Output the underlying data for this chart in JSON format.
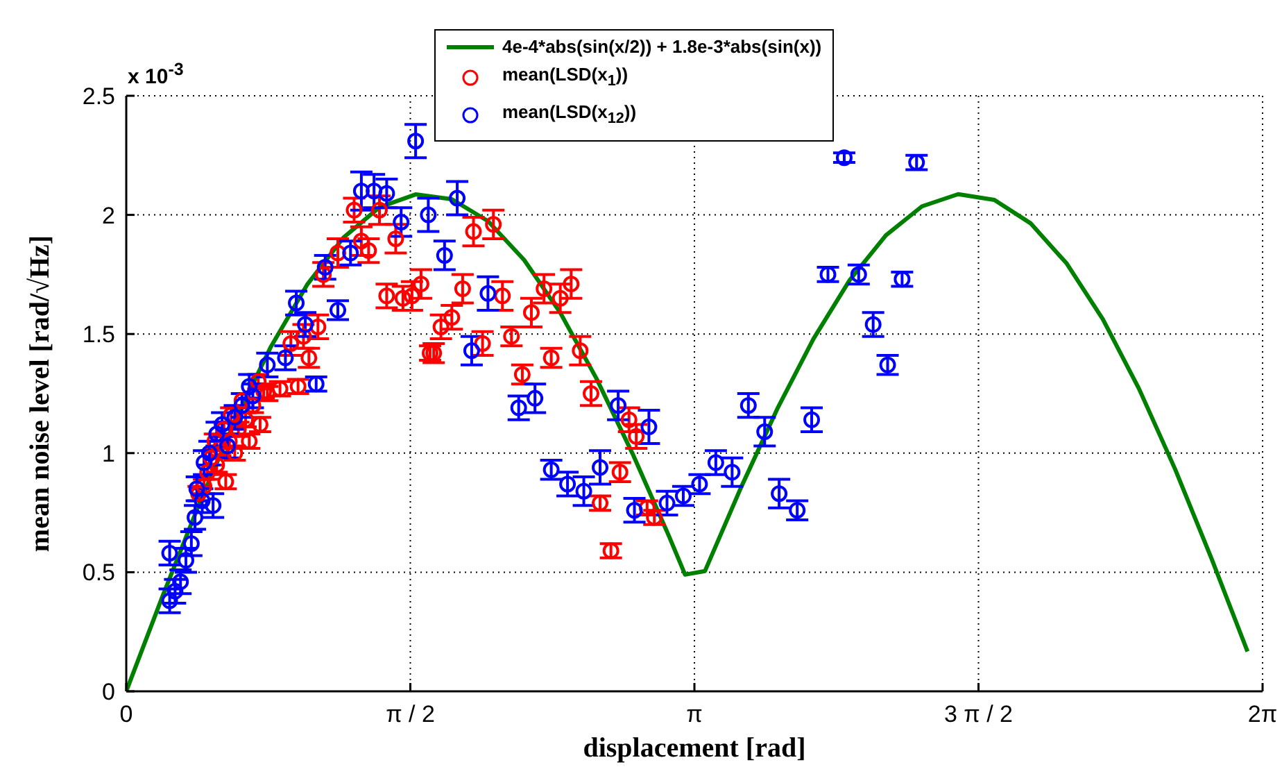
{
  "chart_data": {
    "type": "scatter",
    "xlabel": "displacement [rad]",
    "ylabel": "mean noise level [rad/√Hz]",
    "annotations": [
      "x 10$^{-3}$"
    ],
    "xlim": [
      0,
      6.2832
    ],
    "xticks": [
      0,
      {
        "value": 1.5708,
        "label": "π / 2"
      },
      {
        "value": 3.1416,
        "label": "π"
      },
      {
        "value": 4.7124,
        "label": "3 π / 2"
      },
      {
        "value": 6.2832,
        "label": "2π"
      }
    ],
    "ylim": [
      0,
      2.5
    ],
    "yticks": [
      0,
      0.5,
      1,
      1.5,
      2,
      2.5
    ],
    "grid": true,
    "legend": "top",
    "marker": "circle",
    "series": [
      {
        "name": "4e-4*abs(sin(x/2)) + 1.8e-3*abs(sin(x))",
        "type": "line",
        "line_style": "solid",
        "marker": "none",
        "color": "#008000",
        "x": [
          0,
          0.2,
          0.4,
          0.6,
          0.8,
          1.0,
          1.2,
          1.4,
          1.6,
          1.8,
          2.0,
          2.2,
          2.4,
          2.6,
          2.8,
          3.0,
          3.09,
          3.2,
          3.4,
          3.6,
          3.8,
          4.0,
          4.2,
          4.4,
          4.6,
          4.8,
          5.0,
          5.2,
          5.4,
          5.6,
          5.8,
          6.0,
          6.2
        ],
        "values": [
          0,
          0.398,
          0.78,
          1.134,
          1.447,
          1.707,
          1.904,
          2.032,
          2.086,
          2.066,
          1.974,
          1.811,
          1.589,
          1.313,
          0.997,
          0.653,
          0.49,
          0.505,
          0.857,
          1.186,
          1.48,
          1.726,
          1.914,
          2.036,
          2.087,
          2.063,
          1.965,
          1.796,
          1.562,
          1.27,
          0.932,
          0.559,
          0.167
        ]
      },
      {
        "name": "mean(LSD(x$_{1}$))",
        "color": "#ff0000",
        "x": [
          0.4,
          0.43,
          0.45,
          0.47,
          0.49,
          0.5,
          0.52,
          0.54,
          0.55,
          0.57,
          0.58,
          0.6,
          0.62,
          0.64,
          0.66,
          0.68,
          0.7,
          0.73,
          0.74,
          0.78,
          0.76,
          0.85,
          0.95,
          0.91,
          0.98,
          1.01,
          1.06,
          1.09,
          1.17,
          1.26,
          1.3,
          1.34,
          1.4,
          1.44,
          1.49,
          1.53,
          1.58,
          1.63,
          1.68,
          1.7,
          1.74,
          1.8,
          1.86,
          1.92,
          1.97,
          2.03,
          2.08,
          2.13,
          2.19,
          2.24,
          2.31,
          2.35,
          2.4,
          2.46,
          2.51,
          2.57,
          2.62,
          2.68,
          2.73,
          2.78,
          2.82,
          2.88,
          2.92
        ],
        "values": [
          0.83,
          0.86,
          0.92,
          0.98,
          1.05,
          0.95,
          1.02,
          1.1,
          0.88,
          1.05,
          1.16,
          1.0,
          1.1,
          1.22,
          1.14,
          1.05,
          1.2,
          1.3,
          1.12,
          1.25,
          1.26,
          1.27,
          1.28,
          1.46,
          1.49,
          1.4,
          1.53,
          1.75,
          1.84,
          2.02,
          1.89,
          1.85,
          2.02,
          1.66,
          1.9,
          1.65,
          1.66,
          1.71,
          1.42,
          1.42,
          1.53,
          1.57,
          1.69,
          1.93,
          1.46,
          1.96,
          1.66,
          1.49,
          1.33,
          1.59,
          1.69,
          1.4,
          1.65,
          1.71,
          1.43,
          1.25,
          0.79,
          0.59,
          0.92,
          1.14,
          1.07,
          0.77,
          0.73
        ],
        "errors": [
          0.03,
          0.03,
          0.03,
          0.03,
          0.03,
          0.03,
          0.03,
          0.03,
          0.03,
          0.03,
          0.03,
          0.03,
          0.03,
          0.03,
          0.03,
          0.03,
          0.03,
          0.03,
          0.03,
          0.03,
          0.03,
          0.03,
          0.03,
          0.05,
          0.05,
          0.04,
          0.05,
          0.05,
          0.06,
          0.05,
          0.06,
          0.05,
          0.06,
          0.05,
          0.06,
          0.05,
          0.06,
          0.06,
          0.03,
          0.04,
          0.05,
          0.05,
          0.06,
          0.06,
          0.05,
          0.06,
          0.06,
          0.04,
          0.04,
          0.06,
          0.06,
          0.04,
          0.06,
          0.06,
          0.06,
          0.05,
          0.03,
          0.03,
          0.04,
          0.05,
          0.05,
          0.03,
          0.03
        ]
      },
      {
        "name": "mean(LSD(x$_{12}$))",
        "color": "#0000ff",
        "x": [
          0.24,
          0.24,
          0.27,
          0.3,
          0.33,
          0.36,
          0.38,
          0.39,
          0.42,
          0.43,
          0.46,
          0.48,
          0.5,
          0.53,
          0.56,
          0.6,
          0.64,
          0.68,
          0.7,
          0.78,
          0.88,
          0.94,
          0.99,
          1.05,
          1.1,
          1.17,
          1.24,
          1.3,
          1.37,
          1.44,
          1.52,
          1.6,
          1.67,
          1.76,
          1.83,
          1.91,
          2.0,
          2.17,
          2.26,
          2.35,
          2.44,
          2.53,
          2.62,
          2.72,
          2.81,
          2.89,
          2.99,
          3.08,
          3.17,
          3.26,
          3.35,
          3.44,
          3.53,
          3.61,
          3.71,
          3.79,
          3.88,
          3.97,
          4.05,
          4.13,
          4.21,
          4.29,
          4.37
        ],
        "values": [
          0.58,
          0.38,
          0.42,
          0.46,
          0.55,
          0.62,
          0.73,
          0.85,
          0.8,
          0.96,
          1.0,
          0.78,
          1.08,
          1.12,
          1.03,
          1.15,
          1.2,
          1.28,
          1.24,
          1.37,
          1.4,
          1.63,
          1.54,
          1.29,
          1.78,
          1.6,
          1.84,
          2.1,
          2.1,
          2.09,
          1.97,
          2.31,
          2.0,
          1.83,
          2.07,
          1.43,
          1.67,
          1.19,
          1.23,
          0.93,
          0.87,
          0.84,
          0.94,
          1.2,
          0.76,
          1.11,
          0.79,
          0.82,
          0.87,
          0.96,
          0.92,
          1.2,
          1.09,
          0.83,
          0.76,
          1.14,
          1.75,
          2.24,
          1.75,
          1.54,
          1.37,
          1.73,
          2.22
        ],
        "errors": [
          0.05,
          0.05,
          0.05,
          0.05,
          0.05,
          0.05,
          0.05,
          0.05,
          0.05,
          0.05,
          0.05,
          0.05,
          0.05,
          0.05,
          0.05,
          0.05,
          0.05,
          0.05,
          0.05,
          0.05,
          0.05,
          0.05,
          0.05,
          0.03,
          0.05,
          0.04,
          0.05,
          0.08,
          0.07,
          0.06,
          0.06,
          0.07,
          0.07,
          0.06,
          0.07,
          0.06,
          0.07,
          0.05,
          0.06,
          0.04,
          0.05,
          0.06,
          0.07,
          0.06,
          0.05,
          0.07,
          0.05,
          0.04,
          0.04,
          0.05,
          0.06,
          0.05,
          0.06,
          0.06,
          0.04,
          0.05,
          0.03,
          0.02,
          0.04,
          0.05,
          0.04,
          0.03,
          0.03
        ]
      }
    ]
  }
}
